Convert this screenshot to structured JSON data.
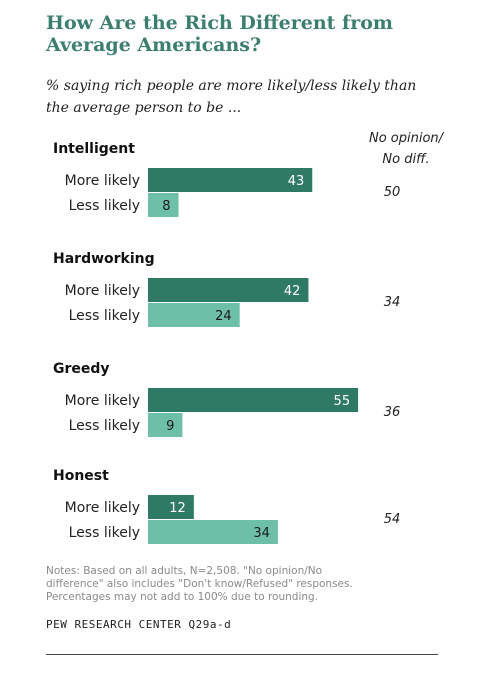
{
  "title_line1": "How Are the Rich Different from",
  "title_line2": "Average Americans?",
  "subtitle_line1": "% saying rich people are more likely/less likely than",
  "subtitle_line2": "the average person to be ...",
  "no_opinion_header_line1": "No opinion/",
  "no_opinion_header_line2": "No diff.",
  "notes_line1": "Notes: Based on all adults, N=2,508. \"No opinion/No",
  "notes_line2": "difference\" also includes \"Don't know/Refused\" responses.",
  "notes_line3": "Percentages may not add to 100% due to rounding.",
  "source": "PEW RESEARCH CENTER Q29a-d",
  "colors": {
    "more_likely": "#2f7a64",
    "less_likely": "#6dbfa8",
    "title": "#3d7f6f"
  },
  "chart_data": {
    "type": "bar",
    "orientation": "horizontal",
    "categories": [
      "Intelligent",
      "Hardworking",
      "Greedy",
      "Honest"
    ],
    "series": [
      {
        "name": "More likely",
        "values": [
          43,
          42,
          55,
          12
        ]
      },
      {
        "name": "Less likely",
        "values": [
          8,
          24,
          9,
          34
        ]
      }
    ],
    "no_opinion": [
      50,
      34,
      36,
      54
    ],
    "xlim": [
      0,
      55
    ],
    "grid": false,
    "legend": "none"
  }
}
